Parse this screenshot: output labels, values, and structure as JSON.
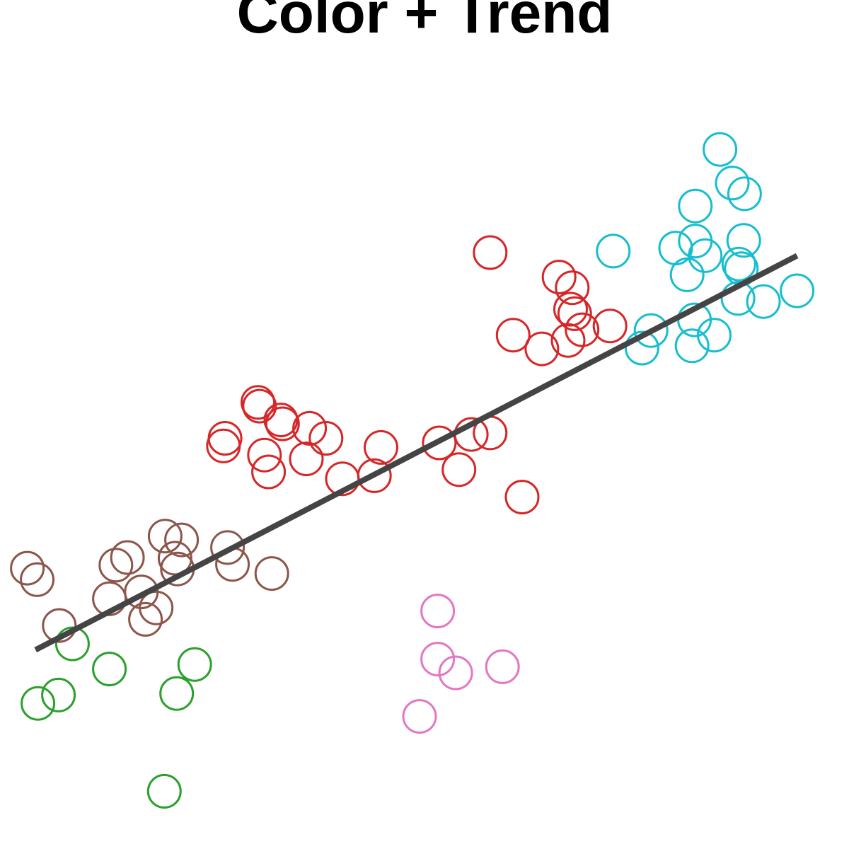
{
  "chart_data": {
    "type": "scatter",
    "title": "Color + Trend",
    "xlabel": "",
    "ylabel": "",
    "axes_visible": false,
    "grid": false,
    "legend": "none",
    "marker": "open-circle",
    "xlim": [
      0,
      1
    ],
    "ylim": [
      0,
      1
    ],
    "series": [
      {
        "color": "#2ca02c",
        "points": [
          [
            0.071,
            0.25
          ],
          [
            0.116,
            0.217
          ],
          [
            0.054,
            0.183
          ],
          [
            0.029,
            0.172
          ],
          [
            0.22,
            0.223
          ],
          [
            0.198,
            0.185
          ],
          [
            0.183,
            0.057
          ]
        ]
      },
      {
        "color": "#8c564b",
        "points": [
          [
            0.138,
            0.363
          ],
          [
            0.184,
            0.391
          ],
          [
            0.204,
            0.386
          ],
          [
            0.196,
            0.362
          ],
          [
            0.199,
            0.348
          ],
          [
            0.124,
            0.353
          ],
          [
            0.016,
            0.349
          ],
          [
            0.028,
            0.334
          ],
          [
            0.155,
            0.318
          ],
          [
            0.116,
            0.309
          ],
          [
            0.173,
            0.297
          ],
          [
            0.16,
            0.282
          ],
          [
            0.055,
            0.274
          ],
          [
            0.26,
            0.376
          ],
          [
            0.266,
            0.354
          ],
          [
            0.314,
            0.342
          ]
        ]
      },
      {
        "color": "#d62728",
        "points": [
          [
            0.297,
            0.566
          ],
          [
            0.299,
            0.561
          ],
          [
            0.325,
            0.543
          ],
          [
            0.327,
            0.538
          ],
          [
            0.257,
            0.519
          ],
          [
            0.255,
            0.509
          ],
          [
            0.36,
            0.532
          ],
          [
            0.38,
            0.519
          ],
          [
            0.447,
            0.507
          ],
          [
            0.356,
            0.492
          ],
          [
            0.305,
            0.497
          ],
          [
            0.31,
            0.475
          ],
          [
            0.4,
            0.466
          ],
          [
            0.439,
            0.47
          ],
          [
            0.518,
            0.513
          ],
          [
            0.557,
            0.524
          ],
          [
            0.58,
            0.526
          ],
          [
            0.542,
            0.478
          ],
          [
            0.619,
            0.442
          ],
          [
            0.58,
            0.762
          ],
          [
            0.664,
            0.73
          ],
          [
            0.68,
            0.716
          ],
          [
            0.678,
            0.688
          ],
          [
            0.683,
            0.682
          ],
          [
            0.608,
            0.654
          ],
          [
            0.643,
            0.636
          ],
          [
            0.675,
            0.647
          ],
          [
            0.692,
            0.661
          ],
          [
            0.726,
            0.666
          ]
        ]
      },
      {
        "color": "#e377c2",
        "points": [
          [
            0.516,
            0.293
          ],
          [
            0.516,
            0.23
          ],
          [
            0.538,
            0.212
          ],
          [
            0.595,
            0.22
          ],
          [
            0.494,
            0.155
          ]
        ]
      },
      {
        "color": "#17becf",
        "points": [
          [
            0.86,
            0.897
          ],
          [
            0.875,
            0.853
          ],
          [
            0.89,
            0.839
          ],
          [
            0.83,
            0.823
          ],
          [
            0.889,
            0.778
          ],
          [
            0.73,
            0.764
          ],
          [
            0.83,
            0.777
          ],
          [
            0.806,
            0.768
          ],
          [
            0.842,
            0.758
          ],
          [
            0.82,
            0.733
          ],
          [
            0.883,
            0.747
          ],
          [
            0.886,
            0.741
          ],
          [
            0.882,
            0.702
          ],
          [
            0.913,
            0.698
          ],
          [
            0.954,
            0.712
          ],
          [
            0.829,
            0.674
          ],
          [
            0.776,
            0.66
          ],
          [
            0.765,
            0.637
          ],
          [
            0.853,
            0.654
          ],
          [
            0.826,
            0.64
          ]
        ]
      }
    ],
    "trend_line": {
      "color": "#444444",
      "x": [
        0.026,
        0.954
      ],
      "y": [
        0.242,
        0.758
      ]
    }
  }
}
